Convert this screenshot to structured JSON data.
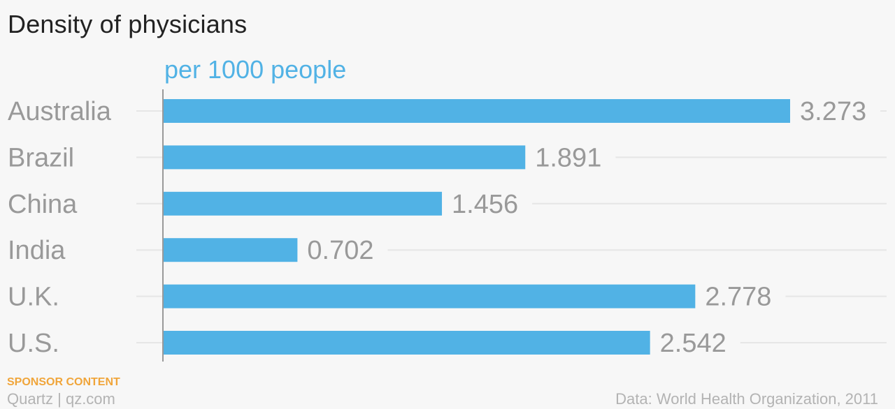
{
  "header": {
    "title": "Density of physicians",
    "unit_label": "per 1000 people"
  },
  "footer": {
    "sponsor": "SPONSOR CONTENT",
    "brand": "Quartz | qz.com",
    "source": "Data: World Health Organization, 2011"
  },
  "colors": {
    "bar": "#51b2e5",
    "label": "#999999",
    "value": "#999999",
    "grid": "#e6e6e6",
    "axis": "#999999"
  },
  "chart_data": {
    "type": "bar",
    "orientation": "horizontal",
    "categories": [
      "Australia",
      "Brazil",
      "China",
      "India",
      "U.K.",
      "U.S."
    ],
    "values": [
      3.273,
      1.891,
      1.456,
      0.702,
      2.778,
      2.542
    ],
    "value_labels": [
      "3.273",
      "1.891",
      "1.456",
      "0.702",
      "2.778",
      "2.542"
    ],
    "title": "Density of physicians",
    "xlabel": "per 1000 people",
    "xlim": [
      0,
      3.273
    ],
    "grid": true
  }
}
